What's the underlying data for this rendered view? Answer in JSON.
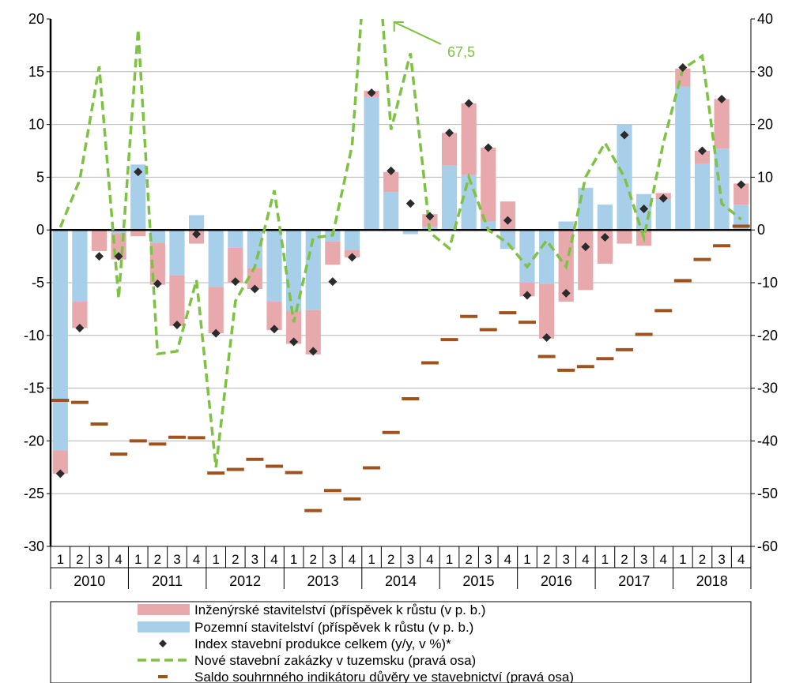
{
  "chart_data": {
    "type": "bar",
    "title": "",
    "xlabel": "",
    "ylabel": "",
    "ylim": [
      -30,
      20
    ],
    "y2lim": [
      -60,
      40
    ],
    "y_ticks": [
      "20",
      "15",
      "10",
      "5",
      "0",
      "-5",
      "-10",
      "-15",
      "-20",
      "-25",
      "-30"
    ],
    "y2_ticks": [
      "40",
      "30",
      "20",
      "10",
      "0",
      "-10",
      "-20",
      "-30",
      "-40",
      "-50",
      "-60"
    ],
    "quarters": [
      "1",
      "2",
      "3",
      "4",
      "1",
      "2",
      "3",
      "4",
      "1",
      "2",
      "3",
      "4",
      "1",
      "2",
      "3",
      "4",
      "1",
      "2",
      "3",
      "4",
      "1",
      "2",
      "3",
      "4",
      "1",
      "2",
      "3",
      "4",
      "1",
      "2",
      "3",
      "4",
      "1",
      "2",
      "3",
      "4"
    ],
    "years": [
      "2010",
      "2011",
      "2012",
      "2013",
      "2014",
      "2015",
      "2016",
      "2017",
      "2018"
    ],
    "annotation": {
      "text": "67,5",
      "quarter_index": 17,
      "value": 67.5
    },
    "series": [
      {
        "name": "Inženýrské stavitelství (příspěvek k růstu (v p. b.)",
        "kind": "stacked-bar",
        "color": "#e8a9ad",
        "values": [
          -2.2,
          -2.5,
          -2.0,
          -2.5,
          -0.6,
          -4.0,
          -4.8,
          -1.3,
          -4.4,
          -3.3,
          -2.0,
          -2.7,
          -3.1,
          -4.2,
          -2.2,
          -0.7,
          0.6,
          1.9,
          0.0,
          1.2,
          3.1,
          6.8,
          7.0,
          2.7,
          -1.3,
          -5.2,
          -6.8,
          -5.7,
          -3.2,
          -1.3,
          -1.5,
          0.6,
          1.7,
          1.2,
          4.7,
          2.0
        ]
      },
      {
        "name": "Pozemní stavitelství (příspěvek k růstu (v p. b.)",
        "kind": "stacked-bar",
        "color": "#a8cfe9",
        "values": [
          -20.9,
          -6.8,
          0.0,
          -0.3,
          6.2,
          -1.2,
          -4.3,
          1.4,
          -5.4,
          -1.7,
          -3.6,
          -6.8,
          -7.7,
          -7.6,
          -1.1,
          -1.9,
          12.6,
          3.6,
          -0.4,
          0.3,
          6.1,
          5.2,
          0.8,
          -1.8,
          -5.0,
          -5.1,
          0.8,
          4.0,
          2.4,
          10.0,
          3.4,
          2.9,
          13.6,
          6.3,
          7.7,
          2.4
        ]
      },
      {
        "name": "Index stavební produkce celkem (y/y, v %)*",
        "kind": "marker",
        "color": "#2b2b2b",
        "values": [
          -23.1,
          -9.3,
          -2.5,
          -2.5,
          5.5,
          -5.1,
          -9.0,
          -0.4,
          -9.8,
          -4.9,
          -5.6,
          -9.4,
          -10.6,
          -11.5,
          -4.9,
          -2.6,
          13.0,
          5.6,
          2.5,
          1.3,
          9.2,
          12.0,
          7.8,
          0.9,
          -6.2,
          -10.2,
          -6.0,
          -1.6,
          -0.7,
          9.0,
          2.0,
          3.0,
          15.4,
          7.5,
          12.4,
          4.3
        ]
      },
      {
        "name": "Nové stavební zakázky v tuzemsku (pravá osa)",
        "kind": "line",
        "axis": "right",
        "color": "#7dc242",
        "values": [
          0.5,
          9.5,
          31.0,
          -13.0,
          38.0,
          -23.5,
          -23.0,
          -9.5,
          -45.0,
          -13.5,
          -7.0,
          7.5,
          -17.5,
          -1.5,
          -1.0,
          16.0,
          67.5,
          19.0,
          33.5,
          -0.5,
          -3.5,
          10.0,
          0.0,
          -2.5,
          -7.0,
          -2.0,
          -7.0,
          10.0,
          16.5,
          10.0,
          -1.5,
          16.5,
          30.5,
          33.0,
          5.0,
          2.0
        ]
      },
      {
        "name": "Saldo souhrnného indikátoru důvěry ve stavebnictví (pravá osa)",
        "kind": "dash",
        "axis": "right",
        "color": "#a0521d",
        "values": [
          -32.3,
          -32.7,
          -36.8,
          -42.5,
          -40.0,
          -40.6,
          -39.3,
          -39.4,
          -46.1,
          -45.4,
          -43.5,
          -44.8,
          -46.0,
          -53.2,
          -49.4,
          -51.0,
          -45.1,
          -38.4,
          -32.0,
          -25.2,
          -20.8,
          -16.4,
          -18.9,
          -15.7,
          -17.5,
          -24.0,
          -26.6,
          -25.9,
          -24.4,
          -22.7,
          -19.8,
          -15.3,
          -9.6,
          -5.6,
          -3.0,
          0.7
        ]
      }
    ]
  }
}
